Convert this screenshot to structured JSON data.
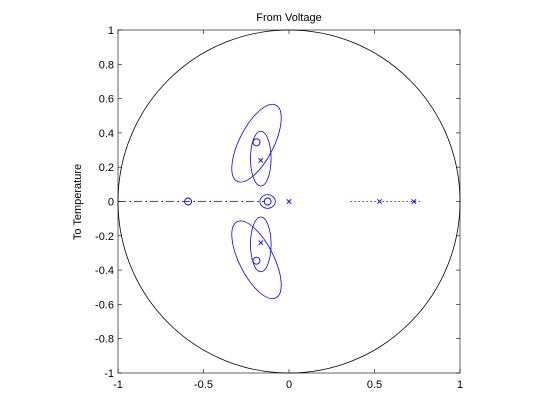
{
  "chart_data": {
    "type": "scatter",
    "title": "From Voltage",
    "xlabel": "",
    "ylabel": "To Temperature",
    "xlim": [
      -1,
      1
    ],
    "ylim": [
      -1,
      1
    ],
    "xticks": [
      -1,
      -0.5,
      0,
      0.5,
      1
    ],
    "xtick_labels": [
      "-1",
      "-0.5",
      "0",
      "0.5",
      "1"
    ],
    "yticks": [
      1,
      0.8,
      0.6,
      0.4,
      0.2,
      0,
      -0.2,
      -0.4,
      -0.6,
      -0.8,
      -1
    ],
    "ytick_labels": [
      "1",
      "0.8",
      "0.6",
      "0.4",
      "0.2",
      "0",
      "-0.2",
      "-0.4",
      "-0.6",
      "-0.8",
      "-1"
    ],
    "grid": false,
    "unit_circle": true,
    "series_color": "#0000ff",
    "axes_color": "#000000",
    "zeros": [
      {
        "x": -0.59,
        "y": 0
      },
      {
        "x": -0.19,
        "y": 0.345
      },
      {
        "x": -0.19,
        "y": -0.345
      },
      {
        "x": -0.125,
        "y": 0
      }
    ],
    "poles": [
      {
        "x": -0.165,
        "y": 0.24
      },
      {
        "x": -0.165,
        "y": -0.24
      },
      {
        "x": 0,
        "y": 0
      },
      {
        "x": 0.53,
        "y": 0
      },
      {
        "x": 0.73,
        "y": 0
      }
    ],
    "uncertainty_regions": [
      {
        "shape": "ellipse",
        "cx": -0.19,
        "cy": 0.34,
        "rx": 0.25,
        "ry": 0.1,
        "angle": 63
      },
      {
        "shape": "ellipse",
        "cx": -0.19,
        "cy": -0.34,
        "rx": 0.25,
        "ry": 0.1,
        "angle": -63
      },
      {
        "shape": "ellipse",
        "cx": -0.165,
        "cy": 0.25,
        "rx": 0.16,
        "ry": 0.06,
        "angle": 90
      },
      {
        "shape": "ellipse",
        "cx": -0.165,
        "cy": -0.25,
        "rx": 0.16,
        "ry": 0.06,
        "angle": 90
      },
      {
        "shape": "ellipse",
        "cx": -0.125,
        "cy": 0,
        "rx": 0.045,
        "ry": 0.04,
        "angle": 0
      },
      {
        "shape": "segment",
        "style": "dashdot",
        "x1": -1,
        "y1": 0,
        "x2": -0.14,
        "y2": 0
      },
      {
        "shape": "segment",
        "style": "dotted",
        "x1": 0.36,
        "y1": 0,
        "x2": 0.78,
        "y2": 0
      }
    ]
  }
}
